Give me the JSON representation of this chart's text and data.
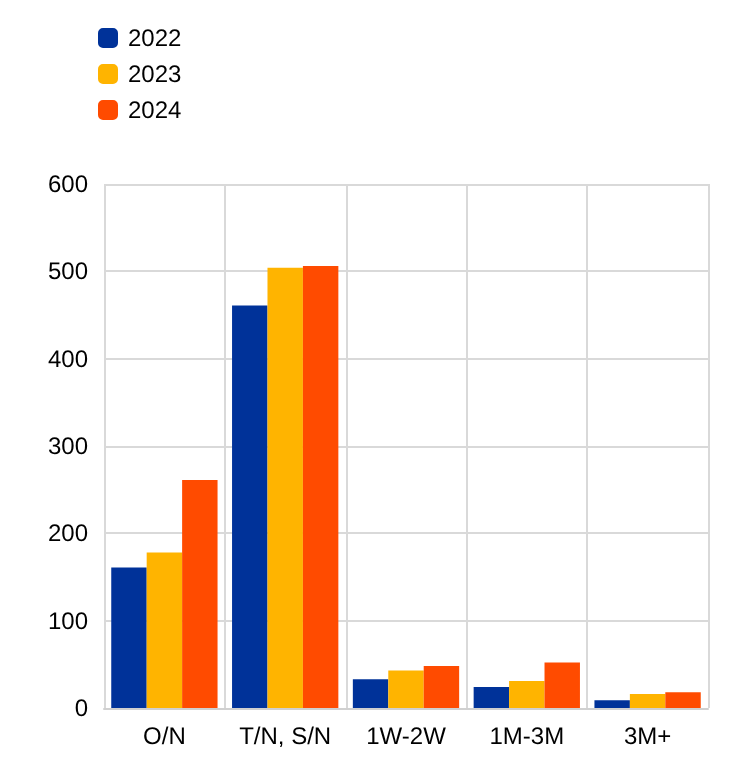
{
  "chart_data": {
    "type": "bar",
    "categories": [
      "O/N",
      "T/N, S/N",
      "1W-2W",
      "1M-3M",
      "3M+"
    ],
    "series": [
      {
        "name": "2022",
        "color": "#003299",
        "values": [
          161,
          461,
          33,
          24,
          9
        ]
      },
      {
        "name": "2023",
        "color": "#ffb400",
        "values": [
          178,
          504,
          43,
          31,
          16
        ]
      },
      {
        "name": "2024",
        "color": "#ff4b00",
        "values": [
          261,
          506,
          48,
          52,
          18
        ]
      }
    ],
    "ylim": [
      0,
      600
    ],
    "yticks": [
      0,
      100,
      200,
      300,
      400,
      500,
      600
    ],
    "grid": true,
    "legend": "top left"
  }
}
